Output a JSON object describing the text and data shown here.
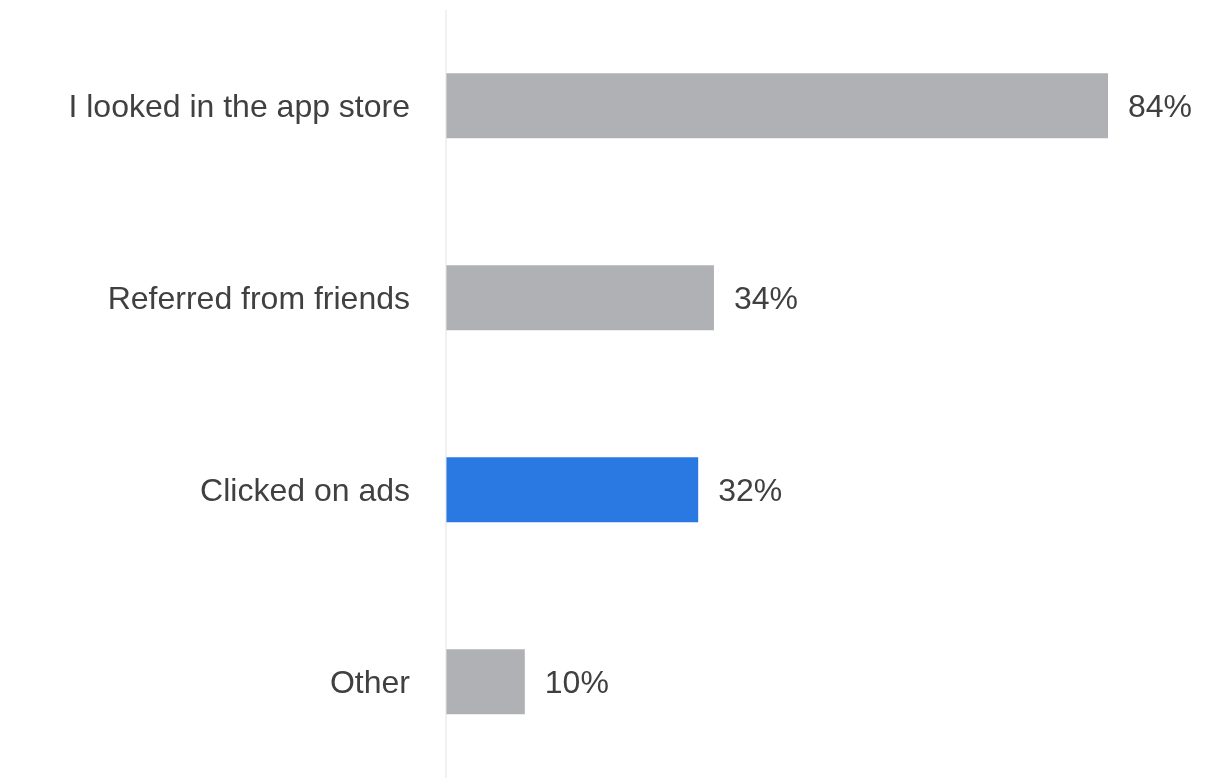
{
  "chart_data": {
    "type": "bar",
    "orientation": "horizontal",
    "categories": [
      "I looked in the app store",
      "Referred from friends",
      "Clicked on ads",
      "Other"
    ],
    "values": [
      84,
      34,
      32,
      10
    ],
    "colors": [
      "#b0b1b5",
      "#b0b1b5",
      "#2a78e2",
      "#b0b1b5"
    ],
    "value_labels": [
      "84%",
      "34%",
      "32%",
      "10%"
    ],
    "grid": false,
    "legend": false
  }
}
